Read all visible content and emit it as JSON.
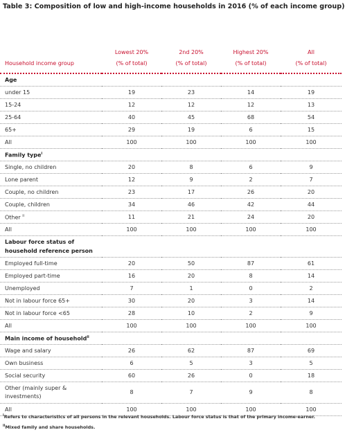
{
  "title": "Table 3: Composition of low and high-income households in 2016 (% of each income group)",
  "table": {
    "header": {
      "label": "Household income group",
      "columns": [
        [
          "Lowest 20%",
          "(% of total)"
        ],
        [
          "2nd 20%",
          "(% of total)"
        ],
        [
          "Highest 20%",
          "(% of total)"
        ],
        [
          "All",
          "(% of total)"
        ]
      ]
    },
    "sections": [
      {
        "heading": "Age",
        "rows": [
          {
            "label": "under 15",
            "values": [
              19,
              23,
              14,
              19
            ]
          },
          {
            "label": "15-24",
            "values": [
              12,
              12,
              12,
              13
            ]
          },
          {
            "label": "25-64",
            "values": [
              40,
              45,
              68,
              54
            ]
          },
          {
            "label": "65+",
            "values": [
              29,
              19,
              6,
              15
            ]
          },
          {
            "label": "All",
            "values": [
              100,
              100,
              100,
              100
            ]
          }
        ]
      },
      {
        "heading": "Family type",
        "marker": "i",
        "rows": [
          {
            "label": "Single, no children",
            "values": [
              20,
              8,
              6,
              9
            ]
          },
          {
            "label": "Lone parent",
            "values": [
              12,
              9,
              2,
              7
            ]
          },
          {
            "label": "Couple, no children",
            "values": [
              23,
              17,
              26,
              20
            ]
          },
          {
            "label": "Couple, children",
            "values": [
              34,
              46,
              42,
              44
            ]
          },
          {
            "label": "Other",
            "marker": "ii",
            "values": [
              11,
              21,
              24,
              20
            ]
          },
          {
            "label": "All",
            "values": [
              100,
              100,
              100,
              100
            ]
          }
        ]
      },
      {
        "heading": "Labour force status of household reference person",
        "rows": [
          {
            "label": "Employed full-time",
            "values": [
              20,
              50,
              87,
              61
            ]
          },
          {
            "label": "Employed part-time",
            "values": [
              16,
              20,
              8,
              14
            ]
          },
          {
            "label": "Unemployed",
            "values": [
              7,
              1,
              0,
              2
            ]
          },
          {
            "label": "Not in labour force 65+",
            "values": [
              30,
              20,
              3,
              14
            ]
          },
          {
            "label": "Not in labour force <65",
            "values": [
              28,
              10,
              2,
              9
            ]
          },
          {
            "label": "All",
            "values": [
              100,
              100,
              100,
              100
            ]
          }
        ]
      },
      {
        "heading": "Main income of household",
        "marker": "ii",
        "rows": [
          {
            "label": "Wage and salary",
            "values": [
              26,
              62,
              87,
              69
            ]
          },
          {
            "label": "Own business",
            "values": [
              6,
              5,
              3,
              5
            ]
          },
          {
            "label": "Social security",
            "values": [
              60,
              26,
              0,
              18
            ]
          },
          {
            "label": "Other (mainly super & investments)",
            "values": [
              8,
              7,
              9,
              8
            ]
          },
          {
            "label": "All",
            "values": [
              100,
              100,
              100,
              100
            ]
          }
        ]
      }
    ]
  },
  "footnotes": [
    {
      "marker": "i",
      "text": "Refers to characteristics of all persons in the relevant households. Labour force status is that of the primary income-earner."
    },
    {
      "marker": "ii",
      "text": "Mixed family and share households."
    }
  ]
}
